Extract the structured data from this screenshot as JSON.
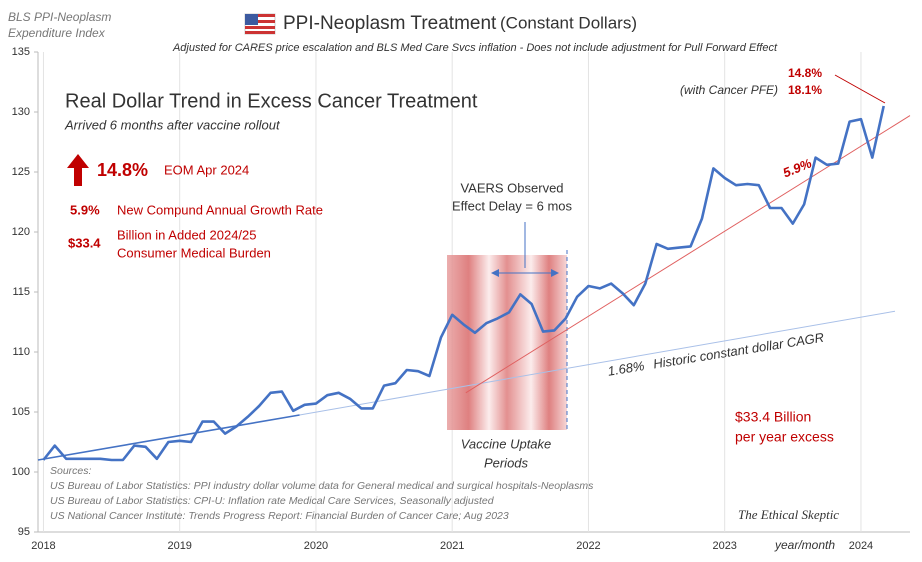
{
  "chart_data": {
    "type": "line",
    "corner_title": [
      "BLS PPI-Neoplasm",
      "Expenditure Index"
    ],
    "title": "PPI-Neoplasm Treatment",
    "title_suffix": "(Constant Dollars)",
    "subtitle": "Adjusted for CARES price escalation and BLS Med Care Svcs inflation - Does not include adjustment for Pull Forward Effect",
    "x_axis_label": "year/month",
    "x": [
      2018.0,
      2018.083,
      2018.167,
      2018.25,
      2018.333,
      2018.417,
      2018.5,
      2018.583,
      2018.667,
      2018.75,
      2018.833,
      2018.917,
      2019.0,
      2019.083,
      2019.167,
      2019.25,
      2019.333,
      2019.417,
      2019.5,
      2019.583,
      2019.667,
      2019.75,
      2019.833,
      2019.917,
      2020.0,
      2020.083,
      2020.167,
      2020.25,
      2020.333,
      2020.417,
      2020.5,
      2020.583,
      2020.667,
      2020.75,
      2020.833,
      2020.917,
      2021.0,
      2021.083,
      2021.167,
      2021.25,
      2021.333,
      2021.417,
      2021.5,
      2021.583,
      2021.667,
      2021.75,
      2021.833,
      2021.917,
      2022.0,
      2022.083,
      2022.167,
      2022.25,
      2022.333,
      2022.417,
      2022.5,
      2022.583,
      2022.667,
      2022.75,
      2022.833,
      2022.917,
      2023.0,
      2023.083,
      2023.167,
      2023.25,
      2023.333,
      2023.417,
      2023.5,
      2023.583,
      2023.667,
      2023.75,
      2023.833,
      2023.917,
      2024.0,
      2024.083,
      2024.167
    ],
    "values": [
      101.0,
      102.2,
      101.1,
      101.1,
      101.1,
      101.1,
      101.0,
      101.0,
      102.2,
      102.1,
      101.1,
      102.5,
      102.6,
      102.5,
      104.2,
      104.2,
      103.2,
      103.8,
      104.6,
      105.5,
      106.6,
      106.7,
      105.1,
      105.6,
      105.7,
      106.4,
      106.6,
      106.1,
      105.3,
      105.3,
      107.2,
      107.4,
      108.5,
      108.4,
      108.0,
      111.2,
      113.1,
      112.3,
      111.6,
      112.4,
      112.8,
      113.3,
      114.8,
      114.0,
      111.7,
      111.8,
      112.8,
      114.6,
      115.5,
      115.3,
      115.7,
      114.9,
      113.9,
      115.7,
      119.0,
      118.6,
      118.7,
      118.8,
      121.1,
      125.3,
      124.5,
      123.9,
      124.0,
      123.9,
      122.0,
      122.0,
      120.7,
      122.3,
      126.2,
      125.6,
      125.7,
      129.2,
      129.4,
      126.2,
      130.5
    ],
    "color": "#4472c4",
    "trend_lines": [
      {
        "color": "#4472c4",
        "x": [
          2017.96,
          2019.88
        ],
        "values": [
          101.0,
          104.75
        ]
      },
      {
        "color": "#a9c0e8",
        "x": [
          2019.88,
          2024.25
        ],
        "values": [
          104.75,
          113.4
        ]
      },
      {
        "color": "#e06060",
        "x": [
          2021.1,
          2024.36
        ],
        "values": [
          106.6,
          129.7
        ]
      }
    ],
    "xlim": [
      2017.96,
      2024.36
    ],
    "ylim": [
      95,
      135
    ],
    "xticks": [
      2018,
      2019,
      2020,
      2021,
      2022,
      2023,
      2024
    ],
    "yticks": [
      95,
      100,
      105,
      110,
      115,
      120,
      125,
      130,
      135
    ],
    "grid": "x",
    "annotations": {
      "headline": "Real Dollar Trend in Excess Cancer Treatment",
      "headline_sub": "Arrived 6 months after vaccine rollout",
      "pct_big": "14.8%",
      "pct_big_note": "EOM Apr 2024",
      "cagr": "5.9%",
      "cagr_note": "New Compund Annual Growth Rate",
      "billion": "$33.4",
      "billion_note": [
        "Billion in Added 2024/25",
        "Consumer Medical Burden"
      ],
      "vaers": [
        "VAERS Observed",
        "Effect Delay = 6 mos"
      ],
      "vaccine": [
        "Vaccine Uptake",
        "Periods"
      ],
      "historic_pct": "1.68%",
      "historic_note": "Historic constant dollar CAGR",
      "trend_pct": "5.9%",
      "end_pct": "14.8%",
      "pfe_note": "(with Cancer PFE)",
      "pfe_pct": "18.1%",
      "excess": [
        "$33.4 Billion",
        "per year excess"
      ],
      "sources": [
        "Sources:",
        "US Bureau of Labor Statistics: PPI industry dollar volume data for General medical and surgical hospitals-Neoplasms",
        "US Bureau of Labor Statistics: CPI-U: Inflation rate Medical Care Services, Seasonally adjusted",
        "US National Cancer Institute: Trends Progress Report: Financial Burden of Cancer Care; Aug 2023"
      ],
      "credit": "The Ethical Skeptic"
    }
  }
}
